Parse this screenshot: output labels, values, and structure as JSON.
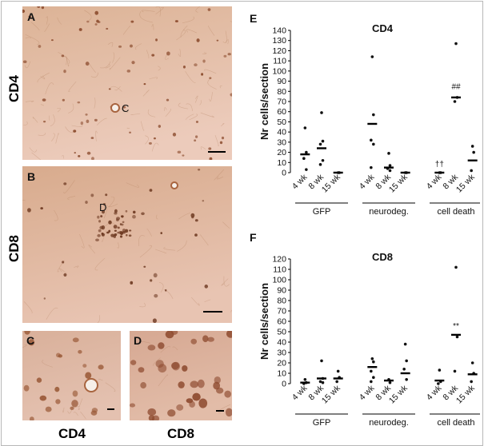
{
  "panels": {
    "A": {
      "letter": "A",
      "inset_label": "C"
    },
    "B": {
      "letter": "B",
      "inset_label": "D"
    },
    "C": {
      "letter": "C"
    },
    "D": {
      "letter": "D"
    }
  },
  "row_labels": {
    "cd4": "CD4",
    "cd8": "CD8"
  },
  "bottom_labels": {
    "cd4": "CD4",
    "cd8": "CD8"
  },
  "chart_data": [
    {
      "type": "scatter",
      "panel_letter": "E",
      "title": "CD4",
      "ylabel": "Nr cells/section",
      "ylim": [
        0,
        140
      ],
      "yticks": [
        0,
        10,
        20,
        30,
        40,
        50,
        60,
        70,
        80,
        90,
        100,
        110,
        120,
        130,
        140
      ],
      "categories": [
        "4 wk",
        "8 wk",
        "15 wk",
        "4 wk",
        "8 wk",
        "15 wk",
        "4 wk",
        "8 wk",
        "15 wk"
      ],
      "groups": [
        {
          "label": "GFP",
          "categories": [
            0,
            1,
            2
          ]
        },
        {
          "label": "neurodeg.",
          "categories": [
            3,
            4,
            5
          ]
        },
        {
          "label": "cell death",
          "categories": [
            6,
            7,
            8
          ]
        }
      ],
      "points": [
        {
          "category": 0,
          "values": [
            44,
            20,
            14,
            3
          ],
          "mean": 18
        },
        {
          "category": 1,
          "values": [
            59,
            31,
            28,
            12,
            8
          ],
          "mean": 24
        },
        {
          "category": 2,
          "values": [
            0,
            0
          ],
          "mean": 0
        },
        {
          "category": 3,
          "values": [
            114,
            57,
            32,
            28,
            5
          ],
          "mean": 48
        },
        {
          "category": 4,
          "values": [
            19,
            7,
            4,
            2
          ],
          "mean": 5
        },
        {
          "category": 5,
          "values": [
            0,
            0
          ],
          "mean": 0
        },
        {
          "category": 6,
          "values": [
            0,
            0
          ],
          "mean": 0
        },
        {
          "category": 7,
          "values": [
            127,
            74,
            70
          ],
          "mean": 74
        },
        {
          "category": 8,
          "values": [
            26,
            20,
            2
          ],
          "mean": 12
        }
      ],
      "annotations": [
        {
          "category": 6,
          "text": "††",
          "y": 6
        },
        {
          "category": 7,
          "text": "##",
          "y": 82
        }
      ]
    },
    {
      "type": "scatter",
      "panel_letter": "F",
      "title": "CD8",
      "ylabel": "Nr cells/section",
      "ylim": [
        0,
        120
      ],
      "yticks": [
        0,
        10,
        20,
        30,
        40,
        50,
        60,
        70,
        80,
        90,
        100,
        110,
        120
      ],
      "categories": [
        "4 wk",
        "8 wk",
        "15 wk",
        "4 wk",
        "8 wk",
        "15 wk",
        "4 wk",
        "8 wk",
        "15 wk"
      ],
      "groups": [
        {
          "label": "GFP",
          "categories": [
            0,
            1,
            2
          ]
        },
        {
          "label": "neurodeg.",
          "categories": [
            3,
            4,
            5
          ]
        },
        {
          "label": "cell death",
          "categories": [
            6,
            7,
            8
          ]
        }
      ],
      "points": [
        {
          "category": 0,
          "values": [
            4,
            1,
            0
          ],
          "mean": 1
        },
        {
          "category": 1,
          "values": [
            22,
            5,
            2,
            1
          ],
          "mean": 5
        },
        {
          "category": 2,
          "values": [
            12,
            6,
            2
          ],
          "mean": 5
        },
        {
          "category": 3,
          "values": [
            24,
            21,
            12,
            6,
            2
          ],
          "mean": 16
        },
        {
          "category": 4,
          "values": [
            4,
            1
          ],
          "mean": 3
        },
        {
          "category": 5,
          "values": [
            38,
            22,
            14,
            4
          ],
          "mean": 10
        },
        {
          "category": 6,
          "values": [
            13,
            2,
            0
          ],
          "mean": 3
        },
        {
          "category": 7,
          "values": [
            112,
            45,
            12
          ],
          "mean": 47
        },
        {
          "category": 8,
          "values": [
            20,
            10,
            2
          ],
          "mean": 9
        }
      ],
      "annotations": [
        {
          "category": 7,
          "text": "**",
          "y": 53
        }
      ]
    }
  ]
}
